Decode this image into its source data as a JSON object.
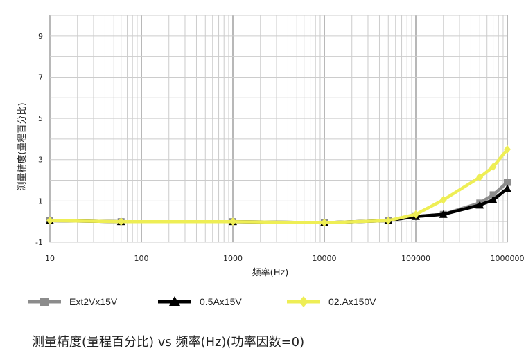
{
  "chart_data": {
    "type": "line",
    "ylabel": "测量精度(量程百分比)",
    "xlabel": "频率(Hz)",
    "caption": "测量精度(量程百分比) vs 频率(Hz)(功率因数=0)",
    "x_scale": "log",
    "xlim": [
      10,
      1000000
    ],
    "ylim": [
      -1,
      10
    ],
    "x_ticks": [
      "10",
      "100",
      "1000",
      "10000",
      "100000",
      "1000000"
    ],
    "y_ticks": [
      "9",
      "7",
      "5",
      "3",
      "1",
      "-1"
    ],
    "grid": true,
    "legend_position": "bottom",
    "series": [
      {
        "name": "Ext2Vx15V",
        "color": "#8c8c8c",
        "marker": "square",
        "points": [
          [
            10,
            0.05
          ],
          [
            60,
            0.0
          ],
          [
            1000,
            0.0
          ],
          [
            10000,
            -0.05
          ],
          [
            50000,
            0.05
          ],
          [
            100000,
            0.25
          ],
          [
            200000,
            0.35
          ],
          [
            500000,
            0.9
          ],
          [
            700000,
            1.3
          ],
          [
            1000000,
            1.9
          ]
        ]
      },
      {
        "name": "0.5Ax15V",
        "color": "#000000",
        "marker": "triangle",
        "points": [
          [
            10,
            0.05
          ],
          [
            60,
            0.0
          ],
          [
            1000,
            0.0
          ],
          [
            10000,
            -0.05
          ],
          [
            50000,
            0.05
          ],
          [
            100000,
            0.25
          ],
          [
            200000,
            0.35
          ],
          [
            500000,
            0.8
          ],
          [
            700000,
            1.05
          ],
          [
            1000000,
            1.6
          ]
        ]
      },
      {
        "name": "02.Ax150V",
        "color": "#eeee55",
        "marker": "diamond",
        "points": [
          [
            10,
            0.05
          ],
          [
            60,
            0.0
          ],
          [
            1000,
            0.0
          ],
          [
            10000,
            -0.05
          ],
          [
            50000,
            0.05
          ],
          [
            100000,
            0.35
          ],
          [
            200000,
            1.05
          ],
          [
            500000,
            2.15
          ],
          [
            700000,
            2.65
          ],
          [
            1000000,
            3.5
          ]
        ]
      }
    ]
  }
}
